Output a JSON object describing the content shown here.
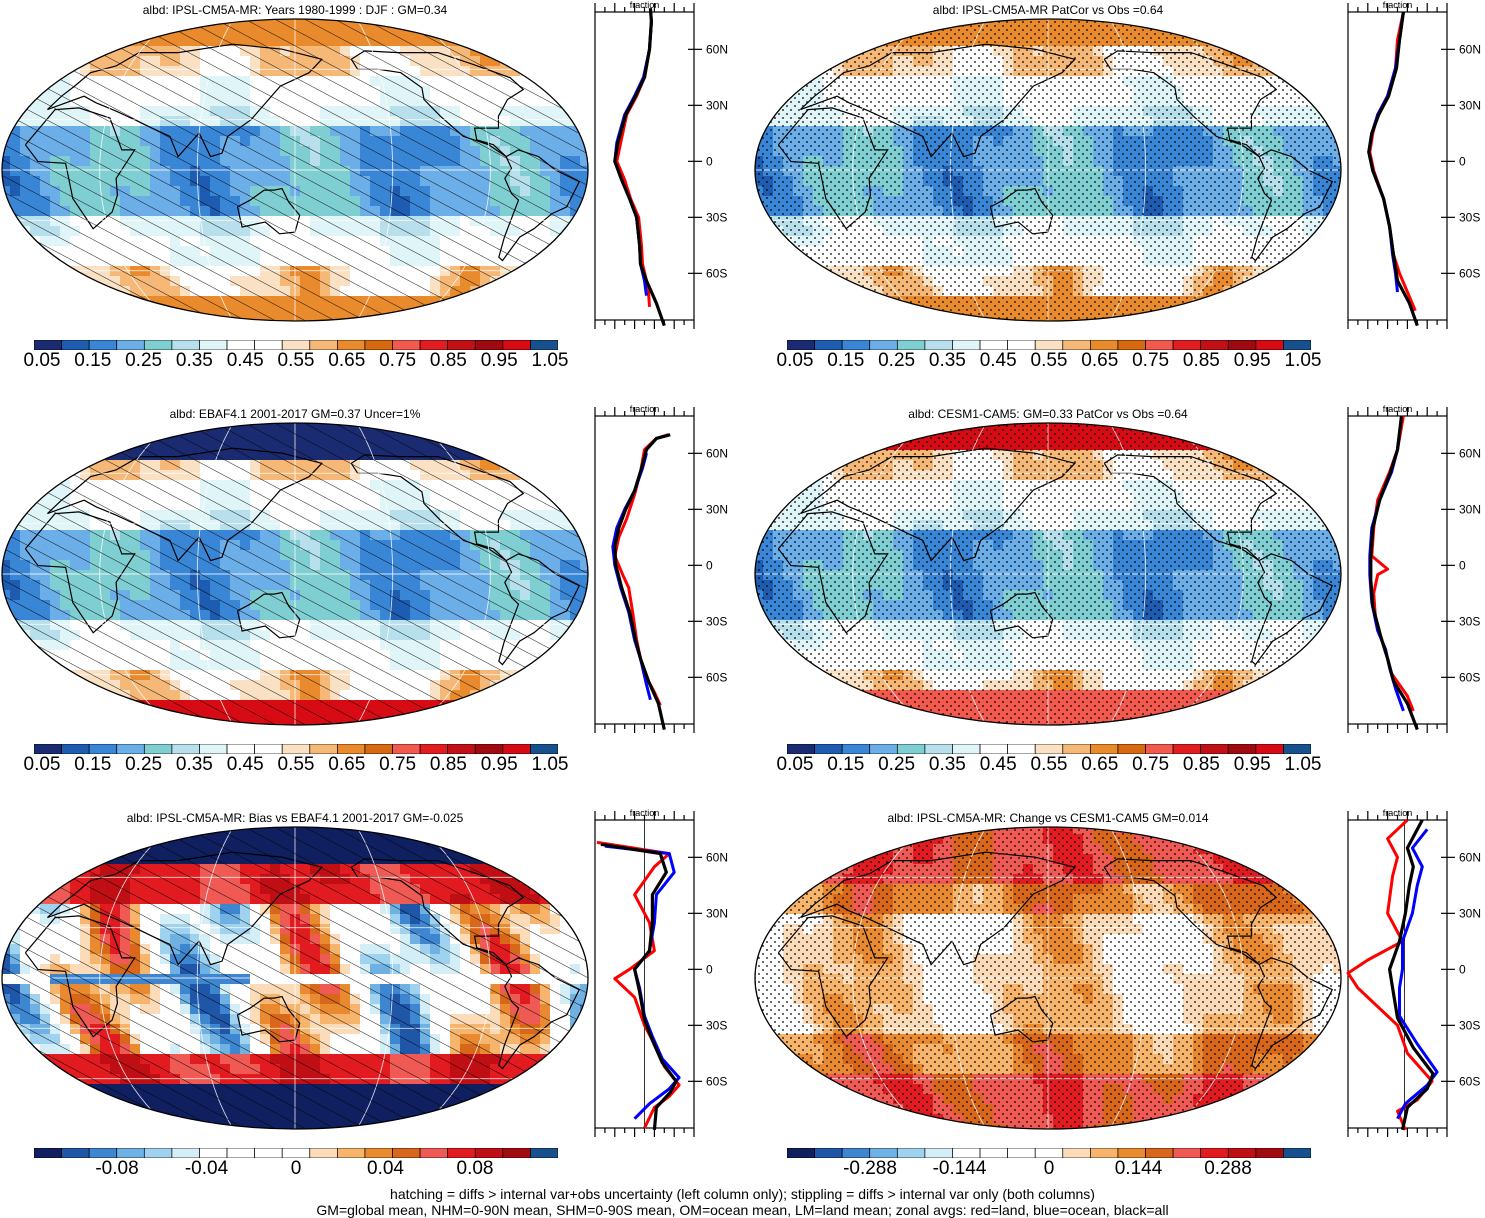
{
  "colors": {
    "seq": [
      "#1b2b72",
      "#1d5cb0",
      "#3a86d6",
      "#6baee8",
      "#7fcfd2",
      "#b8e0ec",
      "#dff5f7",
      "#ffffff",
      "#ffffff",
      "#fbe1c3",
      "#f6b877",
      "#e98a2c",
      "#d76a10",
      "#f25a4f",
      "#e21d21",
      "#c21017",
      "#9e0a10",
      "#d60b14",
      "#17508c"
    ],
    "div": [
      "#0f1f60",
      "#1f56a8",
      "#3f86d0",
      "#70b1e4",
      "#9fd2ee",
      "#d4eef8",
      "#ffffff",
      "#ffffff",
      "#ffffff",
      "#ffffff",
      "#fcdcb8",
      "#f6b46d",
      "#ea8a30",
      "#d8671a",
      "#f05a55",
      "#e21b20",
      "#bf0f14",
      "#a00c10",
      "#17508c"
    ],
    "ocean_seq": "#dff3f6",
    "ocean_div": "#f0a24f",
    "land": "#f5f0ea",
    "zonal_land": "#ff0000",
    "zonal_ocean": "#0000ff",
    "zonal_all": "#000000"
  },
  "panels": [
    {
      "title": "albd: IPSL-CM5A-MR: Years 1980-1999 : DJF : GM=0.34",
      "scale": "seq",
      "overlay": "hatch",
      "colorbar_labels": [
        "0.05",
        "0.15",
        "0.25",
        "0.35",
        "0.45",
        "0.55",
        "0.65",
        "0.75",
        "0.85",
        "0.95",
        "1.05"
      ],
      "zonal": {
        "axis_title": "fraction",
        "xticks": [
          "0.0",
          "0.4",
          "0.8"
        ],
        "xrange": [
          0.0,
          1.0
        ],
        "lat_labels": [
          "60N",
          "30N",
          "0",
          "30S",
          "60S"
        ],
        "zero_line": false
      }
    },
    {
      "title": "albd: IPSL-CM5A-MR PatCor vs Obs =0.64",
      "scale": "seq",
      "overlay": "stipple",
      "colorbar_labels": [
        "0.05",
        "0.15",
        "0.25",
        "0.35",
        "0.45",
        "0.55",
        "0.65",
        "0.75",
        "0.85",
        "0.95",
        "1.05"
      ],
      "zonal": {
        "axis_title": "fraction",
        "xticks": [
          "0.0",
          "0.4",
          "0.8"
        ],
        "xrange": [
          0.0,
          1.0
        ],
        "lat_labels": [
          "60N",
          "30N",
          "0",
          "30S",
          "60S"
        ],
        "zero_line": false
      }
    },
    {
      "title": "albd: EBAF4.1 2001-2017 GM=0.37 Uncer=1%",
      "scale": "seq",
      "overlay": "hatch",
      "colorbar_labels": [
        "0.05",
        "0.15",
        "0.25",
        "0.35",
        "0.45",
        "0.55",
        "0.65",
        "0.75",
        "0.85",
        "0.95",
        "1.05"
      ],
      "zonal": {
        "axis_title": "fraction",
        "xticks": [
          "0.0",
          "0.4",
          "0.8"
        ],
        "xrange": [
          0.0,
          1.0
        ],
        "lat_labels": [
          "60N",
          "30N",
          "0",
          "30S",
          "60S"
        ],
        "zero_line": false
      }
    },
    {
      "title": "albd: CESM1-CAM5: GM=0.33 PatCor vs Obs =0.64",
      "scale": "seq",
      "overlay": "stipple",
      "colorbar_labels": [
        "0.05",
        "0.15",
        "0.25",
        "0.35",
        "0.45",
        "0.55",
        "0.65",
        "0.75",
        "0.85",
        "0.95",
        "1.05"
      ],
      "zonal": {
        "axis_title": "fraction",
        "xticks": [
          "0.0",
          "0.4",
          "0.8"
        ],
        "xrange": [
          0.0,
          1.0
        ],
        "lat_labels": [
          "60N",
          "30N",
          "0",
          "30S",
          "60S"
        ],
        "zero_line": false
      }
    },
    {
      "title": "albd: IPSL-CM5A-MR: Bias vs EBAF4.1 2001-2017 GM=-0.025",
      "scale": "div",
      "overlay": "hatch",
      "colorbar_labels": [
        "-0.08",
        "-0.04",
        "0",
        "0.04",
        "0.08"
      ],
      "zonal": {
        "axis_title": "fraction",
        "xticks": [
          "-0.10",
          "0.10"
        ],
        "xrange": [
          -0.15,
          0.15
        ],
        "lat_labels": [
          "60N",
          "30N",
          "0",
          "30S",
          "60S"
        ],
        "zero_line": true
      }
    },
    {
      "title": "albd: IPSL-CM5A-MR: Change vs CESM1-CAM5 GM=0.014",
      "scale": "div",
      "overlay": "stipple",
      "colorbar_labels": [
        "-0.288",
        "-0.144",
        "0",
        "0.144",
        "0.288"
      ],
      "zonal": {
        "axis_title": "fraction",
        "xticks": [
          "-0.15",
          "-0.05",
          "0.05"
        ],
        "xrange": [
          -0.2,
          0.15
        ],
        "lat_labels": [
          "60N",
          "30N",
          "0",
          "30S",
          "60S"
        ],
        "zero_line": true
      }
    }
  ],
  "footer": {
    "line1": "hatching = diffs > internal var+obs uncertainty (left column only); stippling = diffs > internal var only (both columns)",
    "line2": "GM=global mean, NHM=0-90N mean, SHM=0-90S mean, OM=ocean mean, LM=land mean; zonal avgs: red=land, blue=ocean, black=all"
  }
}
